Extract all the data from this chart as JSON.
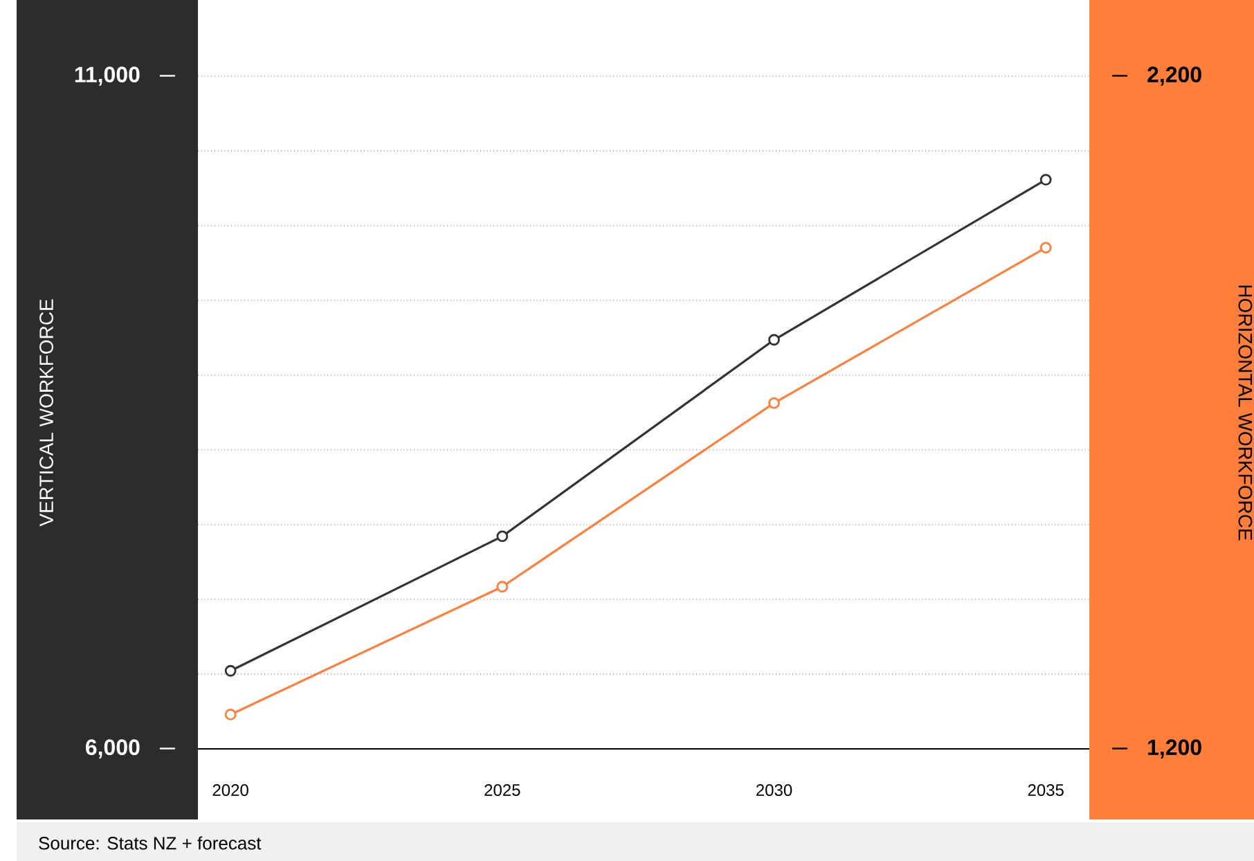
{
  "chart_data": {
    "type": "line",
    "x": [
      2020,
      2025,
      2030,
      2035
    ],
    "xlim": [
      2019.4,
      2035.8
    ],
    "xticks": [
      2020,
      2025,
      2030,
      2035
    ],
    "ylabel": "VERTICAL WORKFORCE",
    "y2label": "HORIZONTAL WORKFORCE",
    "ylim": [
      6000,
      11000
    ],
    "yticks": [
      {
        "value": 6000,
        "label": "6,000"
      },
      {
        "value": 6556,
        "label": null
      },
      {
        "value": 7111,
        "label": null
      },
      {
        "value": 7667,
        "label": null
      },
      {
        "value": 8222,
        "label": null
      },
      {
        "value": 8778,
        "label": null
      },
      {
        "value": 9333,
        "label": null
      },
      {
        "value": 9889,
        "label": null
      },
      {
        "value": 10444,
        "label": null
      },
      {
        "value": 11000,
        "label": "11,000"
      }
    ],
    "y2lim": [
      1200,
      2200
    ],
    "y2ticks": [
      {
        "value": 1200,
        "label": "1,200"
      },
      {
        "value": 2200,
        "label": "2,200"
      }
    ],
    "series": [
      {
        "color": "#333333",
        "values": [
          6580,
          7580,
          9040,
          10230
        ]
      },
      {
        "color": "#ff7f3a",
        "axis": "y2",
        "values": [
          1251,
          1441,
          1714,
          1945
        ]
      }
    ],
    "grid": "y",
    "marker": "circle",
    "line_style": "solid",
    "annotations": [
      "Source: Stats NZ + forecast"
    ]
  }
}
